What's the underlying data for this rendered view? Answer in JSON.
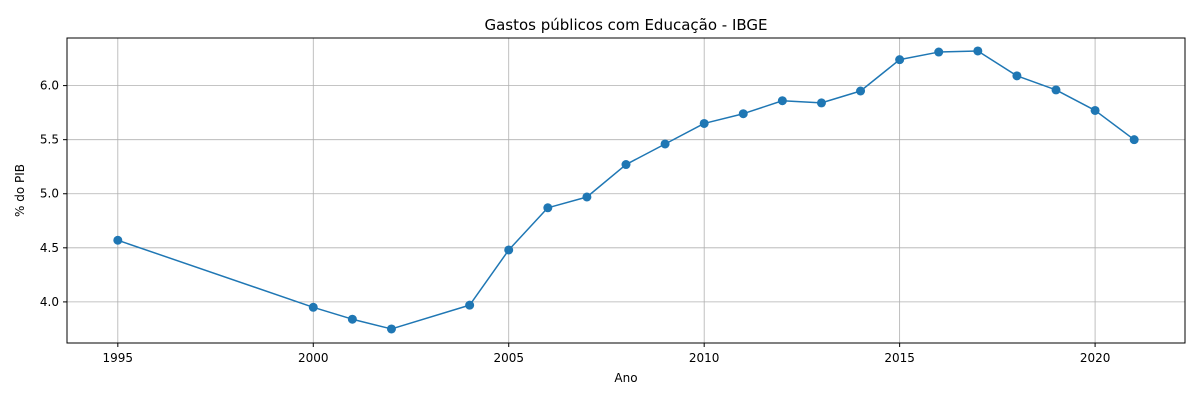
{
  "chart_data": {
    "type": "line",
    "title": "Gastos públicos com Educação - IBGE",
    "xlabel": "Ano",
    "ylabel": "% do PIB",
    "xlim": [
      1993.7,
      2022.3
    ],
    "ylim": [
      3.62,
      6.44
    ],
    "xticks": [
      1995,
      2000,
      2005,
      2010,
      2015,
      2020
    ],
    "yticks": [
      4.0,
      4.5,
      5.0,
      5.5,
      6.0
    ],
    "grid": true,
    "colors": {
      "series": "#1f77b4",
      "grid": "#b0b0b0",
      "axis": "#000000"
    },
    "series": [
      {
        "x": [
          1995,
          2000,
          2001,
          2002,
          2004,
          2005,
          2006,
          2007,
          2008,
          2009,
          2010,
          2011,
          2012,
          2013,
          2014,
          2015,
          2016,
          2017,
          2018,
          2019,
          2020,
          2021
        ],
        "y": [
          4.57,
          3.95,
          3.84,
          3.75,
          3.97,
          4.48,
          4.87,
          4.97,
          5.27,
          5.46,
          5.65,
          5.74,
          5.86,
          5.84,
          5.95,
          6.24,
          6.31,
          6.32,
          6.09,
          5.96,
          5.77,
          5.5
        ]
      }
    ]
  }
}
